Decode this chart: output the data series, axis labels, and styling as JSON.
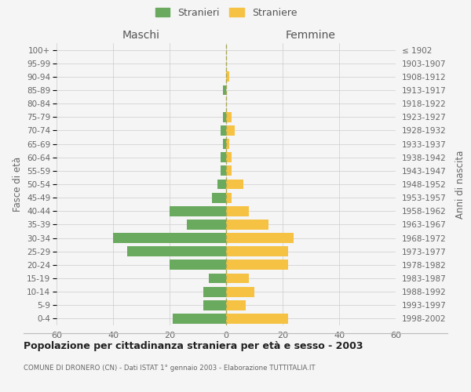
{
  "age_groups": [
    "0-4",
    "5-9",
    "10-14",
    "15-19",
    "20-24",
    "25-29",
    "30-34",
    "35-39",
    "40-44",
    "45-49",
    "50-54",
    "55-59",
    "60-64",
    "65-69",
    "70-74",
    "75-79",
    "80-84",
    "85-89",
    "90-94",
    "95-99",
    "100+"
  ],
  "birth_years": [
    "1998-2002",
    "1993-1997",
    "1988-1992",
    "1983-1987",
    "1978-1982",
    "1973-1977",
    "1968-1972",
    "1963-1967",
    "1958-1962",
    "1953-1957",
    "1948-1952",
    "1943-1947",
    "1938-1942",
    "1933-1937",
    "1928-1932",
    "1923-1927",
    "1918-1922",
    "1913-1917",
    "1908-1912",
    "1903-1907",
    "≤ 1902"
  ],
  "males": [
    19,
    8,
    8,
    6,
    20,
    35,
    40,
    14,
    20,
    5,
    3,
    2,
    2,
    1,
    2,
    1,
    0,
    1,
    0,
    0,
    0
  ],
  "females": [
    22,
    7,
    10,
    8,
    22,
    22,
    24,
    15,
    8,
    2,
    6,
    2,
    2,
    1,
    3,
    2,
    0,
    0,
    1,
    0,
    0
  ],
  "male_color": "#6aaa5e",
  "female_color": "#f5c243",
  "background_color": "#f5f5f5",
  "title": "Popolazione per cittadinanza straniera per età e sesso - 2003",
  "subtitle": "COMUNE DI DRONERO (CN) - Dati ISTAT 1° gennaio 2003 - Elaborazione TUTTITALIA.IT",
  "xlabel_left": "Maschi",
  "xlabel_right": "Femmine",
  "ylabel_left": "Fasce di età",
  "ylabel_right": "Anni di nascita",
  "legend_male": "Stranieri",
  "legend_female": "Straniere",
  "xlim": 60,
  "grid_color": "#cccccc",
  "center_line_color": "#aaa855"
}
